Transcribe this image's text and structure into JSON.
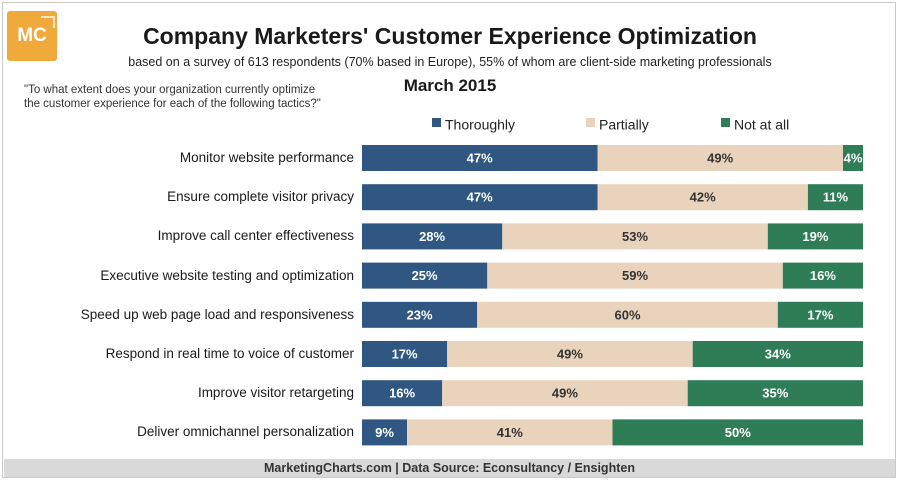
{
  "logo": {
    "text": "MC"
  },
  "header": {
    "title": "Company Marketers' Customer Experience Optimization",
    "subtitle": "based on a survey of 613 respondents (70% based in Europe), 55% of whom are client-side marketing professionals",
    "date": "March 2015",
    "question": "\"To what extent does your organization currently optimize\nthe customer experience for each of the following tactics?\""
  },
  "footer": {
    "text": "MarketingCharts.com | Data Source: Econsultancy / Ensighten"
  },
  "colors": {
    "thoroughly": "#2f5782",
    "partially": "#ead3bd",
    "not_at_all": "#2e7d57"
  },
  "chart_data": {
    "type": "bar",
    "orientation": "horizontal",
    "stacked": true,
    "title": "Company Marketers' Customer Experience Optimization",
    "xlim": [
      0,
      100
    ],
    "unit": "%",
    "legend_position": "top",
    "categories": [
      "Monitor website performance",
      "Ensure complete visitor privacy",
      "Improve call center effectiveness",
      "Executive website testing and optimization",
      "Speed up web page load and responsiveness",
      "Respond in real time to voice of customer",
      "Improve visitor retargeting",
      "Deliver omnichannel personalization"
    ],
    "series": [
      {
        "name": "Thoroughly",
        "values": [
          47,
          47,
          28,
          25,
          23,
          17,
          16,
          9
        ]
      },
      {
        "name": "Partially",
        "values": [
          49,
          42,
          53,
          59,
          60,
          49,
          49,
          41
        ]
      },
      {
        "name": "Not at all",
        "values": [
          4,
          11,
          19,
          16,
          17,
          34,
          35,
          50
        ]
      }
    ]
  }
}
